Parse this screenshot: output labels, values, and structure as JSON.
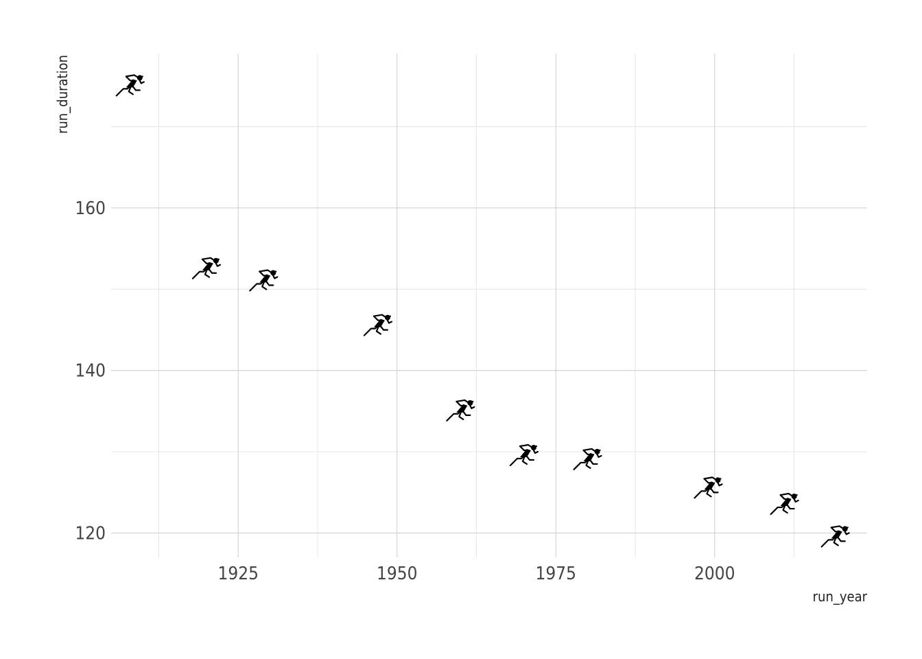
{
  "chart_data": {
    "type": "scatter",
    "xlabel": "run_year",
    "ylabel": "run_duration",
    "xlim": [
      1905,
      2024
    ],
    "ylim": [
      117,
      179
    ],
    "x_ticks": [
      1925,
      1950,
      1975,
      2000
    ],
    "x_tick_labels": [
      "1925",
      "1950",
      "1975",
      "2000"
    ],
    "y_ticks": [
      120,
      140,
      160
    ],
    "y_tick_labels": [
      "120",
      "140",
      "160"
    ],
    "x_minor_ticks": [
      1912.5,
      1937.5,
      1962.5,
      1987.5,
      2012.5
    ],
    "y_minor_ticks": [
      130,
      150,
      170
    ],
    "grid": true,
    "legend": "none",
    "marker": "runner-icon",
    "marker_color": "#000000",
    "points": [
      {
        "x": 1908,
        "y": 175
      },
      {
        "x": 1920,
        "y": 152.5
      },
      {
        "x": 1929,
        "y": 151
      },
      {
        "x": 1947,
        "y": 145.5
      },
      {
        "x": 1960,
        "y": 135
      },
      {
        "x": 1970,
        "y": 129.5
      },
      {
        "x": 1980,
        "y": 129
      },
      {
        "x": 1999,
        "y": 125.5
      },
      {
        "x": 2011,
        "y": 123.5
      },
      {
        "x": 2019,
        "y": 119.5
      }
    ]
  }
}
